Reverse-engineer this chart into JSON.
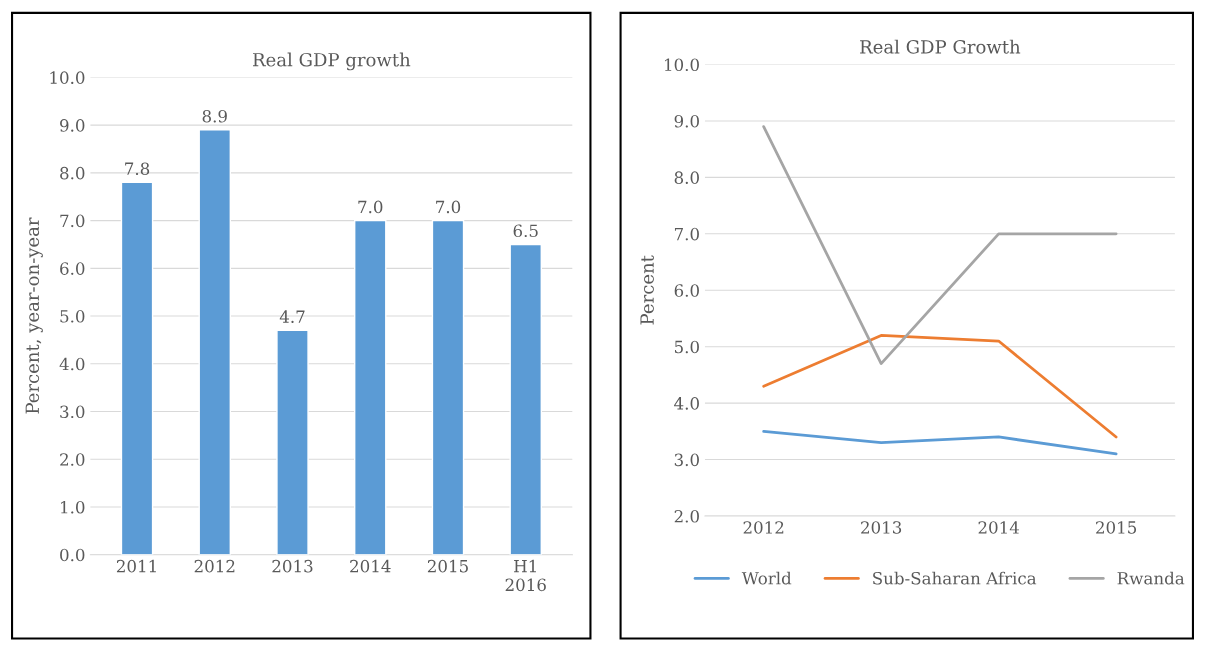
{
  "chart_data": [
    {
      "type": "bar",
      "title": "Real GDP growth",
      "ylabel": "Percent, year-on-year",
      "categories": [
        "2011",
        "2012",
        "2013",
        "2014",
        "2015",
        "H1\n2016"
      ],
      "values": [
        7.8,
        8.9,
        4.7,
        7.0,
        7.0,
        6.5
      ],
      "color": "#5b9bd5",
      "value_labels": [
        "7.8",
        "8.9",
        "4.7",
        "7.0",
        "7.0",
        "6.5"
      ],
      "ylim": [
        0,
        10
      ],
      "yticks": [
        {
          "value": 0,
          "label": "0.0"
        },
        {
          "value": 1,
          "label": "1.0"
        },
        {
          "value": 2,
          "label": "2.0"
        },
        {
          "value": 3,
          "label": "3.0"
        },
        {
          "value": 4,
          "label": "4.0"
        },
        {
          "value": 5,
          "label": "5.0"
        },
        {
          "value": 6,
          "label": "6.0"
        },
        {
          "value": 7,
          "label": "7.0"
        },
        {
          "value": 8,
          "label": "8.0"
        },
        {
          "value": 9,
          "label": "9.0"
        },
        {
          "value": 10,
          "label": "10.0"
        }
      ],
      "grid": "y",
      "legend": false
    },
    {
      "type": "line",
      "title": "Real GDP Growth",
      "ylabel": "Percent",
      "categories": [
        "2012",
        "2013",
        "2014",
        "2015"
      ],
      "series": [
        {
          "name": "World",
          "color": "#5b9bd5",
          "values": [
            3.5,
            3.3,
            3.4,
            3.1
          ]
        },
        {
          "name": "Sub-Saharan Africa",
          "color": "#ed7d31",
          "values": [
            4.3,
            5.2,
            5.1,
            3.4
          ]
        },
        {
          "name": "Rwanda",
          "color": "#a5a5a5",
          "values": [
            8.9,
            4.7,
            7.0,
            7.0
          ]
        }
      ],
      "ylim": [
        2,
        10
      ],
      "yticks": [
        {
          "value": 2,
          "label": "2.0"
        },
        {
          "value": 3,
          "label": "3.0"
        },
        {
          "value": 4,
          "label": "4.0"
        },
        {
          "value": 5,
          "label": "5.0"
        },
        {
          "value": 6,
          "label": "6.0"
        },
        {
          "value": 7,
          "label": "7.0"
        },
        {
          "value": 8,
          "label": "8.0"
        },
        {
          "value": 9,
          "label": "9.0"
        },
        {
          "value": 10,
          "label": "10.0"
        }
      ],
      "grid": "y",
      "legend": "bottom",
      "marker": "none",
      "line_style": "solid"
    }
  ]
}
